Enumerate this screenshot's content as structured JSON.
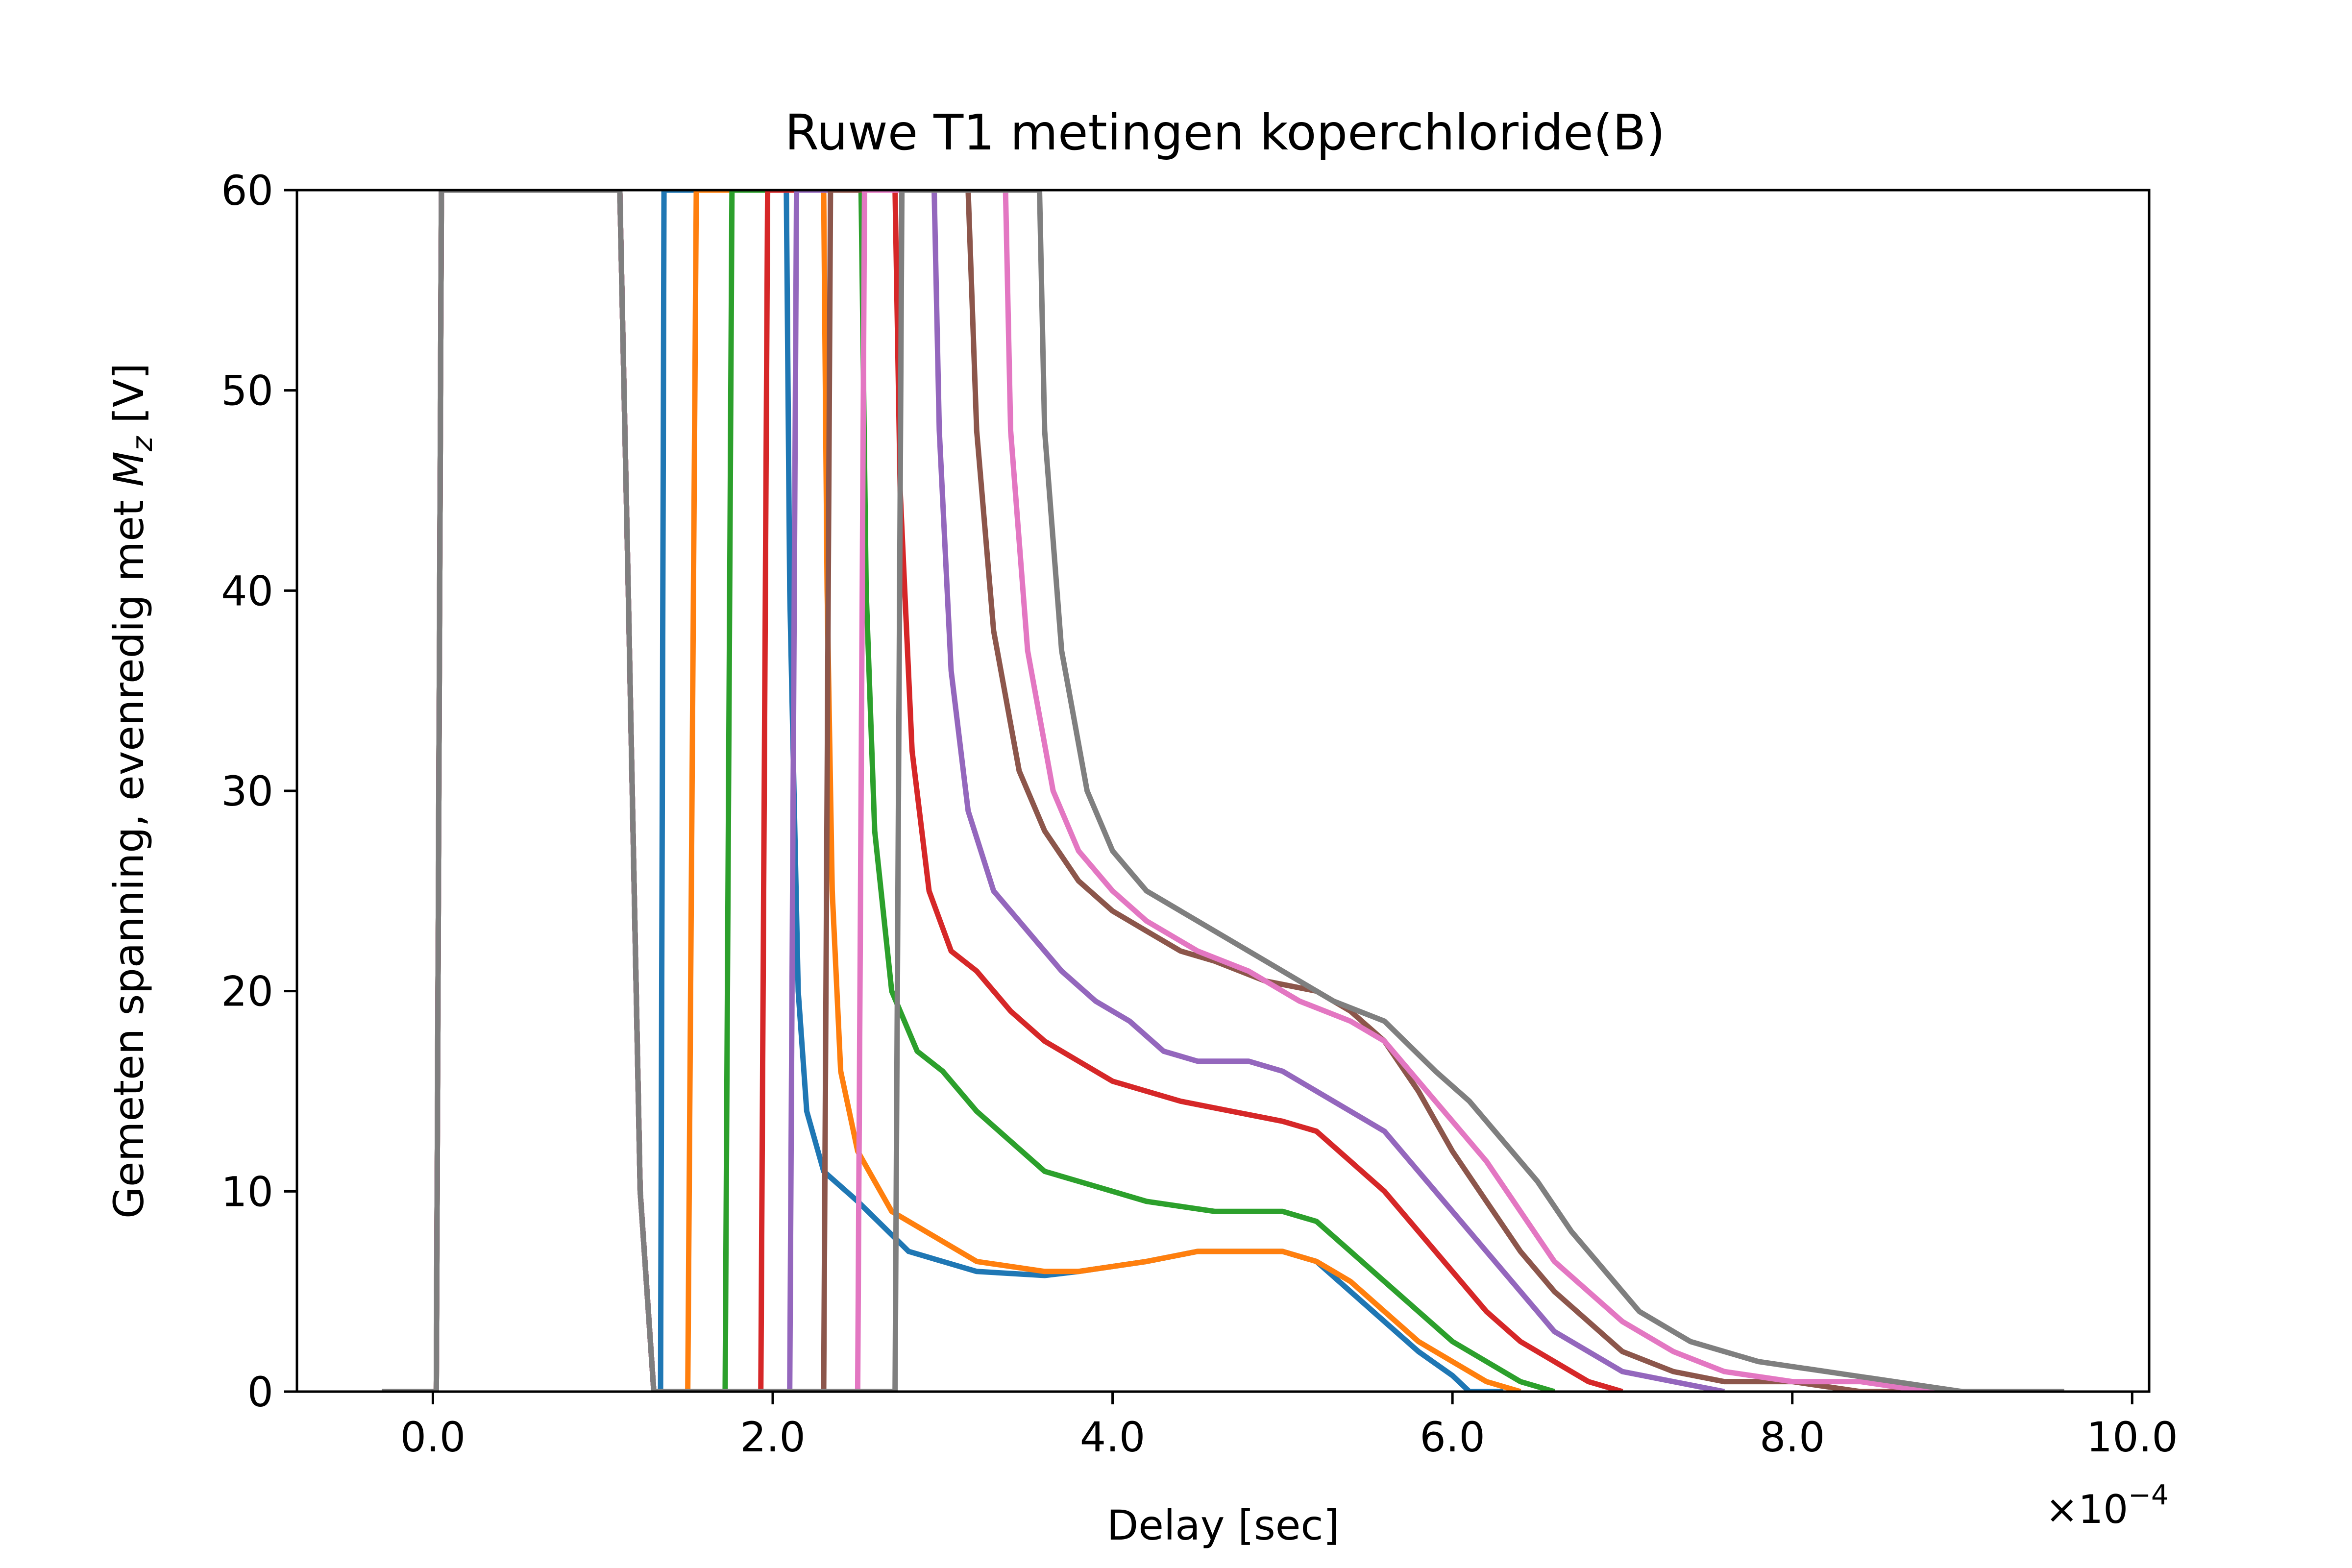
{
  "chart_data": {
    "type": "line",
    "title": "Ruwe T1 metingen koperchloride(B)",
    "xlabel": "Delay [sec]",
    "ylabel": "Gemeten spanning, evenredig met M_z [V]",
    "ylabel_parts": {
      "prefix": "Gemeten spanning, evenredig met ",
      "symbol": "M",
      "subscript": "z",
      "suffix": " [V]"
    },
    "x_offset_label": "×10",
    "x_offset_exponent": "−4",
    "x_scale": 0.0001,
    "xlim": [
      -0.8,
      10.1
    ],
    "ylim": [
      0,
      60
    ],
    "x_ticks": [
      0,
      2,
      4,
      6,
      8,
      10
    ],
    "x_tick_labels": [
      "0.0",
      "2.0",
      "4.0",
      "6.0",
      "8.0",
      "10.0"
    ],
    "y_ticks": [
      0,
      10,
      20,
      30,
      40,
      50,
      60
    ],
    "y_tick_labels": [
      "0",
      "10",
      "20",
      "30",
      "40",
      "50",
      "60"
    ],
    "grid": false,
    "legend": "none",
    "series": [
      {
        "color": "#1f77b4",
        "points": [
          [
            -0.3,
            0
          ],
          [
            0.02,
            0
          ],
          [
            0.05,
            60
          ],
          [
            1.1,
            60
          ],
          [
            1.15,
            40
          ],
          [
            1.22,
            10
          ],
          [
            1.3,
            0
          ],
          [
            1.34,
            0
          ],
          [
            1.36,
            60
          ],
          [
            2.08,
            60
          ],
          [
            2.1,
            40
          ],
          [
            2.15,
            20
          ],
          [
            2.2,
            14
          ],
          [
            2.3,
            11
          ],
          [
            2.5,
            9.5
          ],
          [
            2.8,
            7
          ],
          [
            3.0,
            6.5
          ],
          [
            3.2,
            6
          ],
          [
            3.6,
            5.8
          ],
          [
            3.8,
            6
          ],
          [
            4.2,
            6.5
          ],
          [
            4.5,
            7
          ],
          [
            4.8,
            7
          ],
          [
            5.0,
            7
          ],
          [
            5.2,
            6.5
          ],
          [
            5.4,
            5
          ],
          [
            5.6,
            3.5
          ],
          [
            5.8,
            2
          ],
          [
            6.0,
            0.8
          ],
          [
            6.1,
            0
          ],
          [
            6.3,
            0
          ]
        ]
      },
      {
        "color": "#ff7f0e",
        "points": [
          [
            -0.3,
            0
          ],
          [
            0.02,
            0
          ],
          [
            0.05,
            60
          ],
          [
            1.1,
            60
          ],
          [
            1.15,
            40
          ],
          [
            1.22,
            10
          ],
          [
            1.3,
            0
          ],
          [
            1.5,
            0
          ],
          [
            1.55,
            60
          ],
          [
            2.3,
            60
          ],
          [
            2.32,
            40
          ],
          [
            2.35,
            25
          ],
          [
            2.4,
            16
          ],
          [
            2.5,
            12
          ],
          [
            2.7,
            9
          ],
          [
            3.0,
            7.5
          ],
          [
            3.2,
            6.5
          ],
          [
            3.6,
            6
          ],
          [
            3.8,
            6
          ],
          [
            4.2,
            6.5
          ],
          [
            4.5,
            7
          ],
          [
            4.8,
            7
          ],
          [
            5.0,
            7
          ],
          [
            5.2,
            6.5
          ],
          [
            5.4,
            5.5
          ],
          [
            5.6,
            4
          ],
          [
            5.8,
            2.5
          ],
          [
            6.0,
            1.5
          ],
          [
            6.2,
            0.5
          ],
          [
            6.4,
            0
          ]
        ]
      },
      {
        "color": "#2ca02c",
        "points": [
          [
            -0.3,
            0
          ],
          [
            0.02,
            0
          ],
          [
            0.05,
            60
          ],
          [
            1.1,
            60
          ],
          [
            1.15,
            40
          ],
          [
            1.22,
            10
          ],
          [
            1.3,
            0
          ],
          [
            1.72,
            0
          ],
          [
            1.76,
            60
          ],
          [
            2.52,
            60
          ],
          [
            2.55,
            40
          ],
          [
            2.6,
            28
          ],
          [
            2.7,
            20
          ],
          [
            2.85,
            17
          ],
          [
            3.0,
            16
          ],
          [
            3.2,
            14
          ],
          [
            3.4,
            12.5
          ],
          [
            3.6,
            11
          ],
          [
            3.8,
            10.5
          ],
          [
            4.0,
            10
          ],
          [
            4.2,
            9.5
          ],
          [
            4.6,
            9
          ],
          [
            5.0,
            9
          ],
          [
            5.2,
            8.5
          ],
          [
            5.4,
            7
          ],
          [
            5.6,
            5.5
          ],
          [
            5.8,
            4
          ],
          [
            6.0,
            2.5
          ],
          [
            6.2,
            1.5
          ],
          [
            6.4,
            0.5
          ],
          [
            6.6,
            0
          ]
        ]
      },
      {
        "color": "#d62728",
        "points": [
          [
            -0.3,
            0
          ],
          [
            0.02,
            0
          ],
          [
            0.05,
            60
          ],
          [
            1.1,
            60
          ],
          [
            1.15,
            40
          ],
          [
            1.22,
            10
          ],
          [
            1.3,
            0
          ],
          [
            1.93,
            0
          ],
          [
            1.97,
            60
          ],
          [
            2.72,
            60
          ],
          [
            2.75,
            45
          ],
          [
            2.82,
            32
          ],
          [
            2.92,
            25
          ],
          [
            3.05,
            22
          ],
          [
            3.2,
            21
          ],
          [
            3.4,
            19
          ],
          [
            3.6,
            17.5
          ],
          [
            3.8,
            16.5
          ],
          [
            4.0,
            15.5
          ],
          [
            4.2,
            15
          ],
          [
            4.4,
            14.5
          ],
          [
            4.7,
            14
          ],
          [
            5.0,
            13.5
          ],
          [
            5.2,
            13
          ],
          [
            5.4,
            11.5
          ],
          [
            5.6,
            10
          ],
          [
            5.8,
            8
          ],
          [
            6.0,
            6
          ],
          [
            6.2,
            4
          ],
          [
            6.4,
            2.5
          ],
          [
            6.6,
            1.5
          ],
          [
            6.8,
            0.5
          ],
          [
            7.0,
            0
          ]
        ]
      },
      {
        "color": "#9467bd",
        "points": [
          [
            -0.3,
            0
          ],
          [
            0.02,
            0
          ],
          [
            0.05,
            60
          ],
          [
            1.1,
            60
          ],
          [
            1.15,
            40
          ],
          [
            1.22,
            10
          ],
          [
            1.3,
            0
          ],
          [
            2.1,
            0
          ],
          [
            2.14,
            60
          ],
          [
            2.95,
            60
          ],
          [
            2.98,
            48
          ],
          [
            3.05,
            36
          ],
          [
            3.15,
            29
          ],
          [
            3.3,
            25
          ],
          [
            3.5,
            23
          ],
          [
            3.7,
            21
          ],
          [
            3.9,
            19.5
          ],
          [
            4.1,
            18.5
          ],
          [
            4.3,
            17
          ],
          [
            4.5,
            16.5
          ],
          [
            4.8,
            16.5
          ],
          [
            5.0,
            16
          ],
          [
            5.2,
            15
          ],
          [
            5.4,
            14
          ],
          [
            5.6,
            13
          ],
          [
            5.8,
            11
          ],
          [
            6.0,
            9
          ],
          [
            6.2,
            7
          ],
          [
            6.4,
            5
          ],
          [
            6.6,
            3
          ],
          [
            6.8,
            2
          ],
          [
            7.0,
            1
          ],
          [
            7.3,
            0.5
          ],
          [
            7.6,
            0
          ]
        ]
      },
      {
        "color": "#8c564b",
        "points": [
          [
            -0.3,
            0
          ],
          [
            0.02,
            0
          ],
          [
            0.05,
            60
          ],
          [
            1.1,
            60
          ],
          [
            1.15,
            40
          ],
          [
            1.22,
            10
          ],
          [
            1.3,
            0
          ],
          [
            2.3,
            0
          ],
          [
            2.34,
            60
          ],
          [
            3.15,
            60
          ],
          [
            3.2,
            48
          ],
          [
            3.3,
            38
          ],
          [
            3.45,
            31
          ],
          [
            3.6,
            28
          ],
          [
            3.8,
            25.5
          ],
          [
            4.0,
            24
          ],
          [
            4.2,
            23
          ],
          [
            4.4,
            22
          ],
          [
            4.6,
            21.5
          ],
          [
            4.9,
            20.5
          ],
          [
            5.2,
            20
          ],
          [
            5.4,
            19
          ],
          [
            5.6,
            17.5
          ],
          [
            5.8,
            15
          ],
          [
            6.0,
            12
          ],
          [
            6.2,
            9.5
          ],
          [
            6.4,
            7
          ],
          [
            6.6,
            5
          ],
          [
            6.8,
            3.5
          ],
          [
            7.0,
            2
          ],
          [
            7.3,
            1
          ],
          [
            7.6,
            0.5
          ],
          [
            8.0,
            0.5
          ],
          [
            8.4,
            0
          ],
          [
            9.2,
            0
          ]
        ]
      },
      {
        "color": "#e377c2",
        "points": [
          [
            -0.3,
            0
          ],
          [
            0.02,
            0
          ],
          [
            0.05,
            60
          ],
          [
            1.1,
            60
          ],
          [
            1.15,
            40
          ],
          [
            1.22,
            10
          ],
          [
            1.3,
            0
          ],
          [
            2.5,
            0
          ],
          [
            2.54,
            60
          ],
          [
            3.37,
            60
          ],
          [
            3.4,
            48
          ],
          [
            3.5,
            37
          ],
          [
            3.65,
            30
          ],
          [
            3.8,
            27
          ],
          [
            4.0,
            25
          ],
          [
            4.2,
            23.5
          ],
          [
            4.5,
            22
          ],
          [
            4.8,
            21
          ],
          [
            5.1,
            19.5
          ],
          [
            5.4,
            18.5
          ],
          [
            5.6,
            17.5
          ],
          [
            5.8,
            15.5
          ],
          [
            6.0,
            13.5
          ],
          [
            6.2,
            11.5
          ],
          [
            6.4,
            9
          ],
          [
            6.6,
            6.5
          ],
          [
            6.8,
            5
          ],
          [
            7.0,
            3.5
          ],
          [
            7.3,
            2
          ],
          [
            7.6,
            1
          ],
          [
            8.0,
            0.5
          ],
          [
            8.4,
            0.5
          ],
          [
            8.8,
            0
          ],
          [
            9.6,
            0
          ]
        ]
      },
      {
        "color": "#7f7f7f",
        "points": [
          [
            -0.3,
            0
          ],
          [
            0.02,
            0
          ],
          [
            0.05,
            60
          ],
          [
            1.1,
            60
          ],
          [
            1.15,
            40
          ],
          [
            1.22,
            10
          ],
          [
            1.3,
            0
          ],
          [
            2.72,
            0
          ],
          [
            2.76,
            60
          ],
          [
            3.57,
            60
          ],
          [
            3.6,
            48
          ],
          [
            3.7,
            37
          ],
          [
            3.85,
            30
          ],
          [
            4.0,
            27
          ],
          [
            4.2,
            25
          ],
          [
            4.5,
            23.5
          ],
          [
            4.8,
            22
          ],
          [
            5.0,
            21
          ],
          [
            5.3,
            19.5
          ],
          [
            5.6,
            18.5
          ],
          [
            5.9,
            16
          ],
          [
            6.1,
            14.5
          ],
          [
            6.3,
            12.5
          ],
          [
            6.5,
            10.5
          ],
          [
            6.7,
            8
          ],
          [
            6.9,
            6
          ],
          [
            7.1,
            4
          ],
          [
            7.4,
            2.5
          ],
          [
            7.8,
            1.5
          ],
          [
            8.2,
            1
          ],
          [
            8.6,
            0.5
          ],
          [
            9.0,
            0
          ],
          [
            9.6,
            0
          ]
        ]
      }
    ]
  }
}
